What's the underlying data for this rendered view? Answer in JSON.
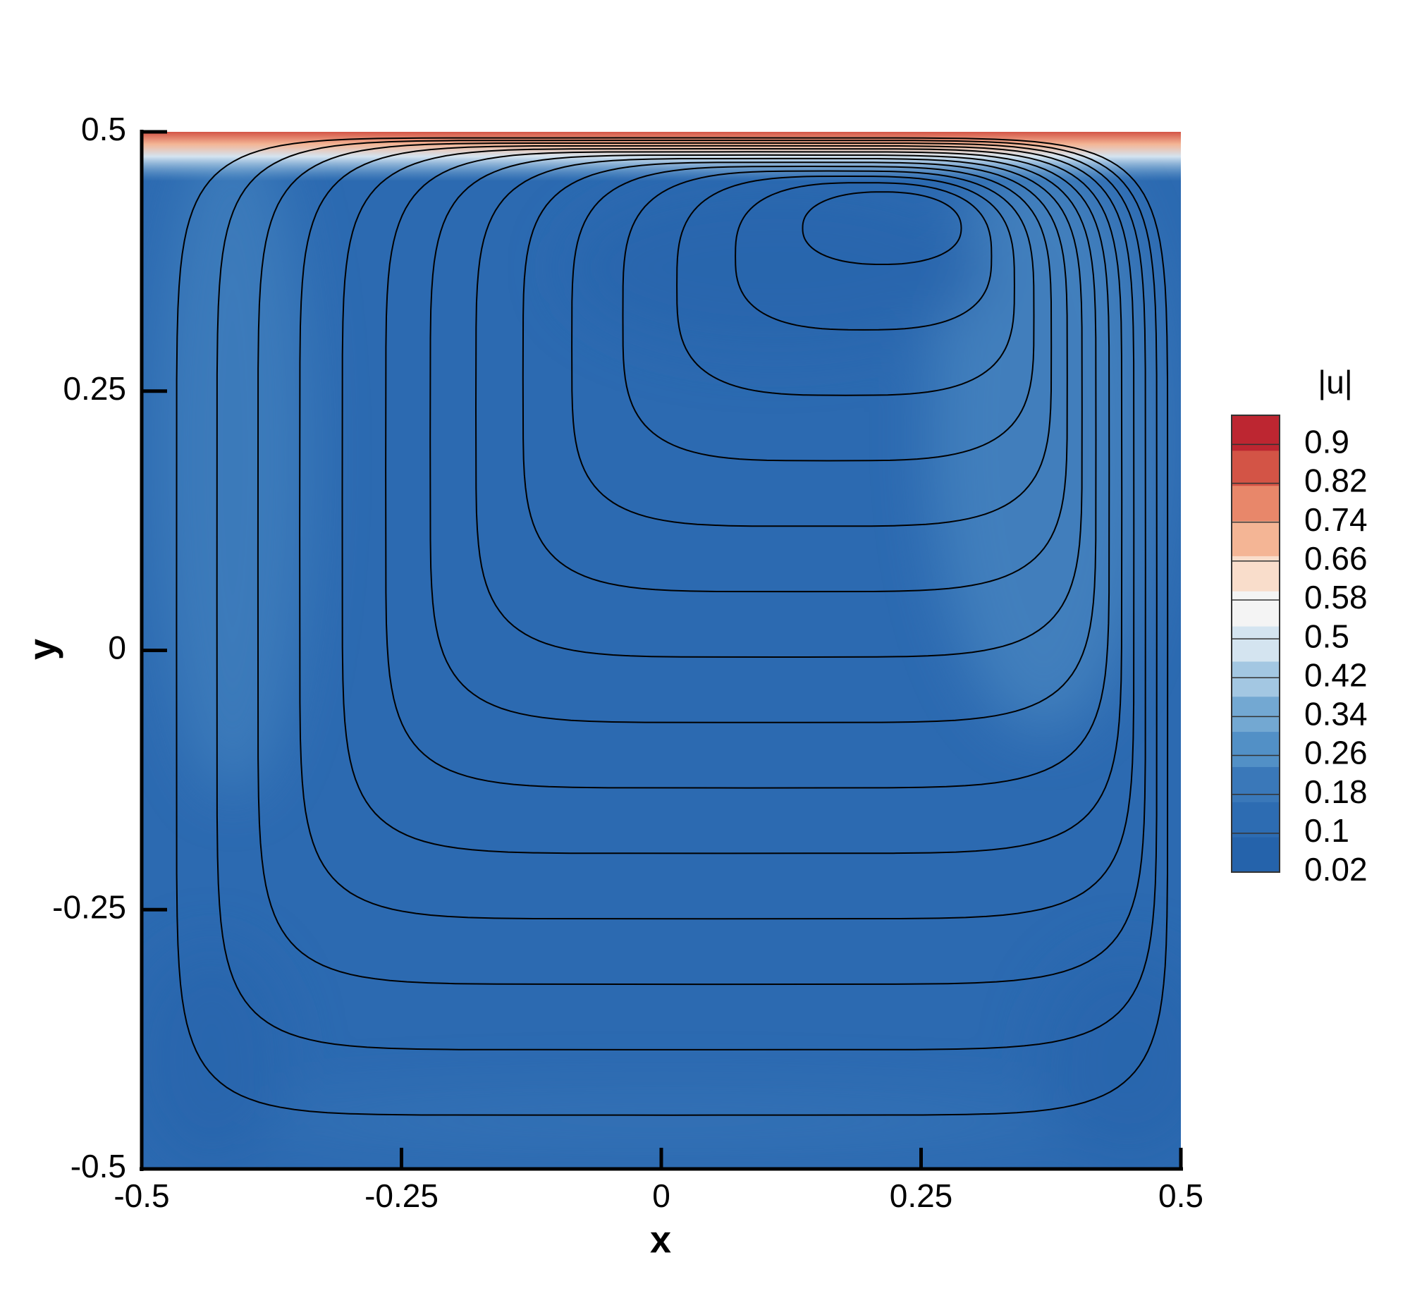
{
  "chart_data": {
    "type": "contour",
    "xlabel": "x",
    "ylabel": "y",
    "xlim": [
      -0.5,
      0.5
    ],
    "ylim": [
      -0.5,
      0.5
    ],
    "xticks": [
      -0.5,
      -0.25,
      0,
      0.25,
      0.5
    ],
    "yticks": [
      -0.5,
      -0.25,
      0,
      0.25,
      0.5
    ],
    "colorbar": {
      "title": "|u|",
      "clim": [
        0.02,
        0.96
      ],
      "ticks": [
        0.02,
        0.1,
        0.18,
        0.26,
        0.34,
        0.42,
        0.5,
        0.58,
        0.66,
        0.74,
        0.82,
        0.9
      ],
      "colors": [
        "#2563ab",
        "#2d6cb2",
        "#3a78b9",
        "#5290c6",
        "#73a8d2",
        "#a3c7e2",
        "#d4e4f0",
        "#f4f4f4",
        "#f9ddcb",
        "#f4b595",
        "#e8876a",
        "#d35446",
        "#bd2631"
      ]
    }
  }
}
